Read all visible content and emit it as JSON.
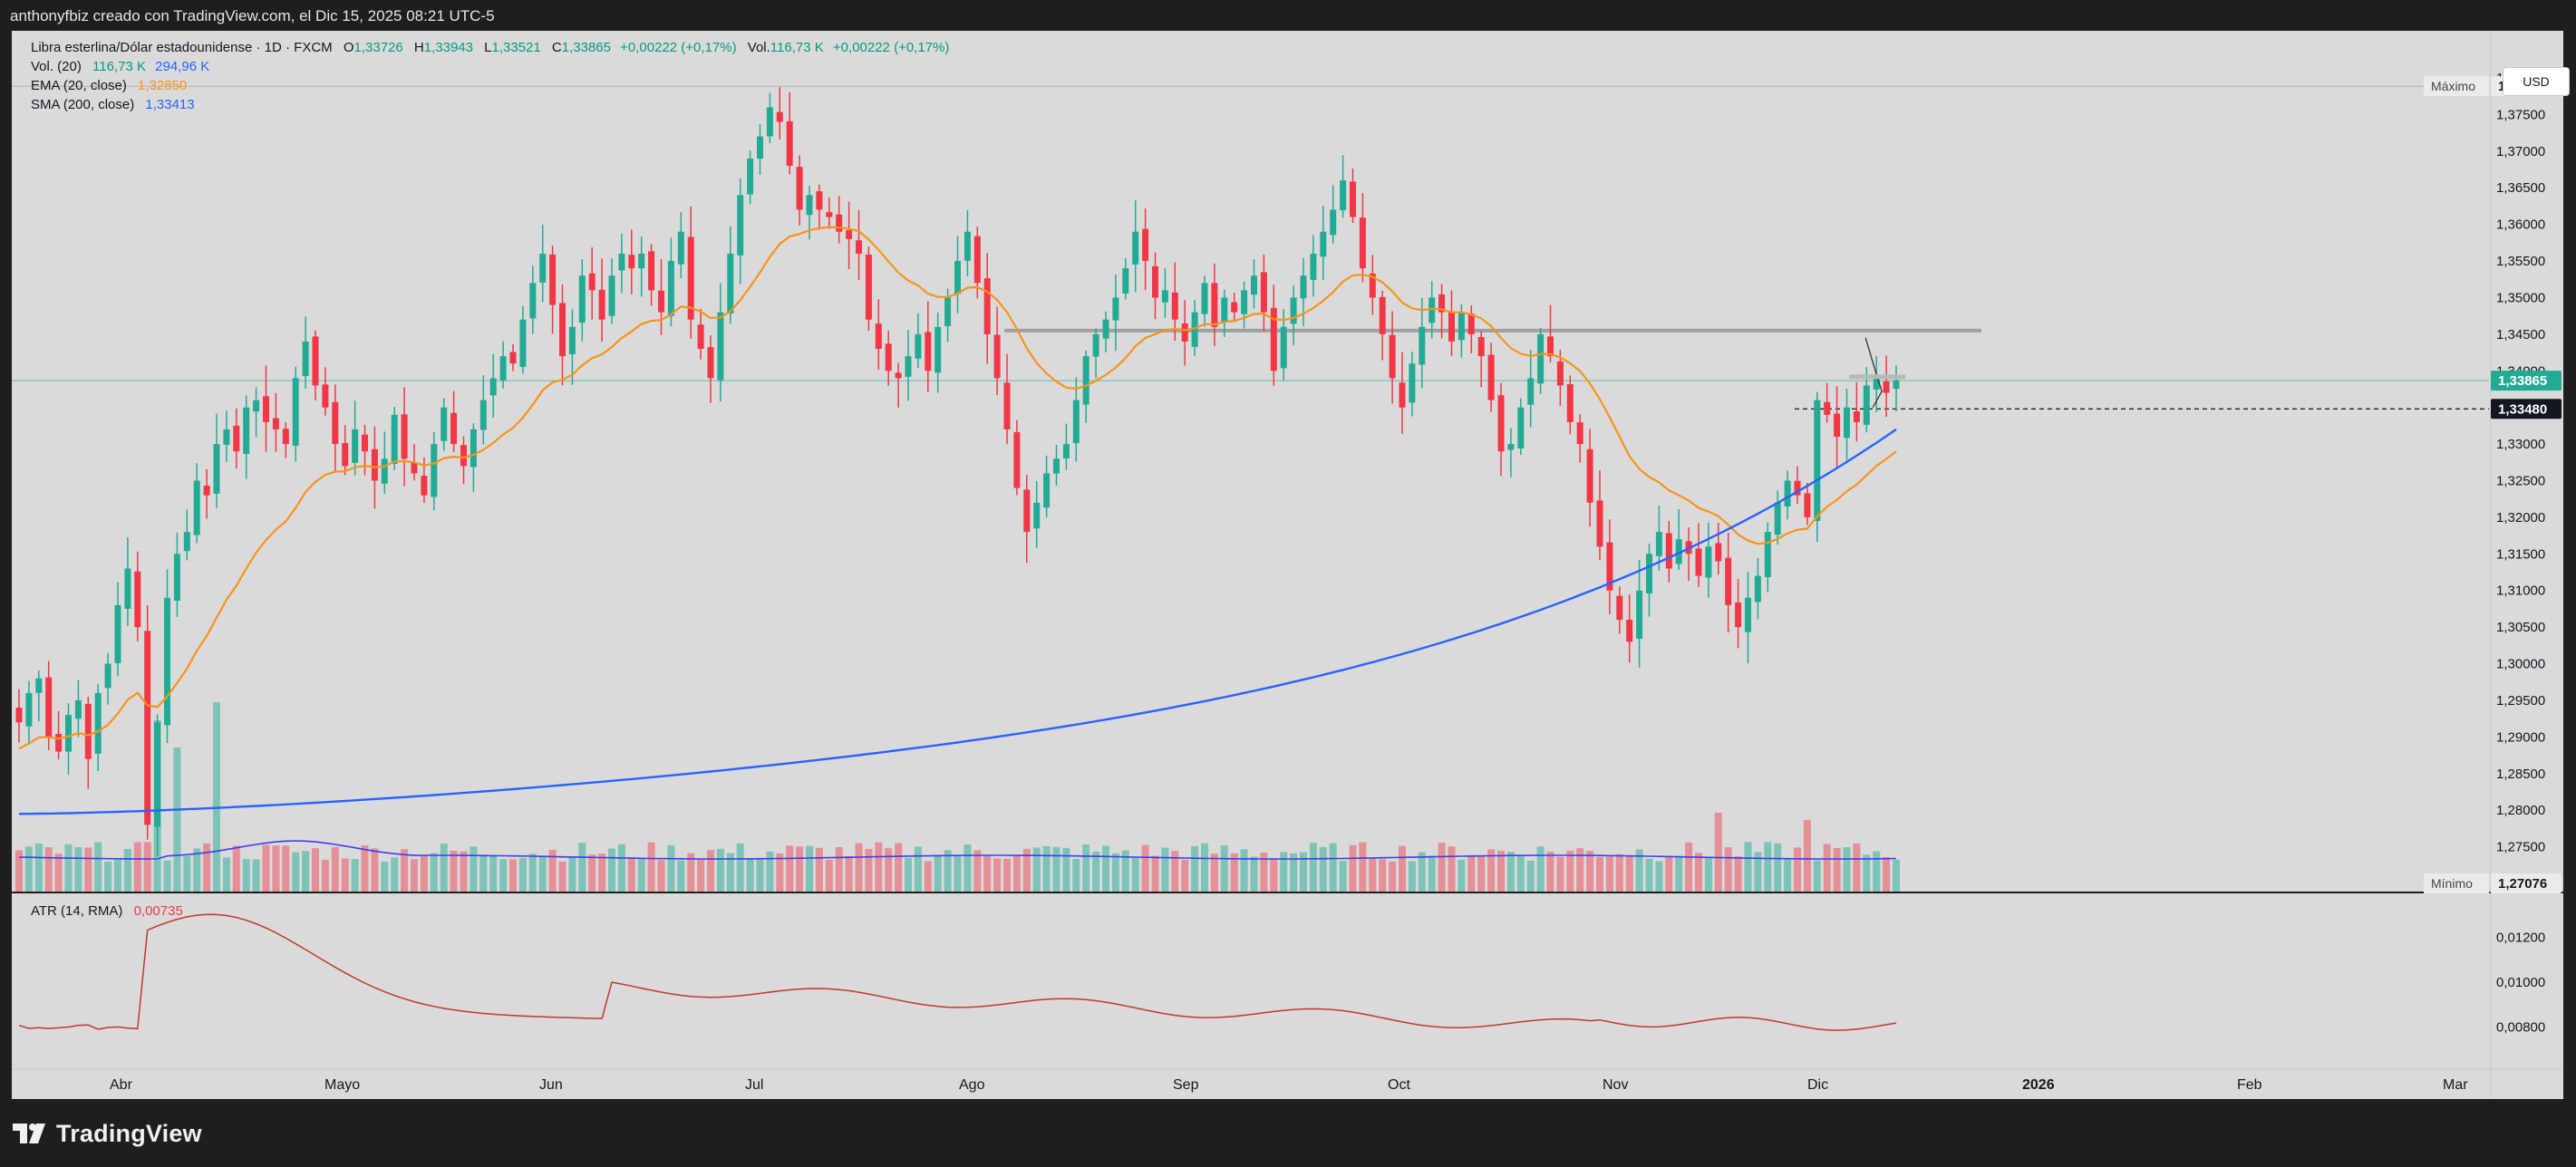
{
  "header": {
    "caption": "anthonyfbiz creado con TradingView.com, el Dic 15, 2025 08:21 UTC-5"
  },
  "legend": {
    "symbol": "Libra esterlina/Dólar estadounidense · 1D · FXCM",
    "o_label": "O",
    "o_value": "1,33726",
    "h_label": "H",
    "h_value": "1,33943",
    "l_label": "L",
    "l_value": "1,33521",
    "c_label": "C",
    "c_value": "1,33865",
    "change": "+0,00222 (+0,17%)",
    "vol_label": "Vol.",
    "vol_value": "116,73 K",
    "vol_change": "+0,00222 (+0,17%)",
    "vol_ind": "Vol. (20)",
    "vol_ind_v1": "116,73 K",
    "vol_ind_v2": "294,96 K",
    "ema": "EMA (20, close)",
    "ema_value": "1,32850",
    "sma": "SMA (200, close)",
    "sma_value": "1,33413",
    "atr": "ATR (14, RMA)",
    "atr_value": "0,00735"
  },
  "currency_button": "USD",
  "badges": {
    "max_label": "Máximo",
    "max_value": "1,37886",
    "min_label": "Mínimo",
    "min_value": "1,27076",
    "last_price": "1,33865",
    "crosshair_price": "1,33480"
  },
  "price_axis": [
    "1,38000",
    "1,37500",
    "1,37000",
    "1,36500",
    "1,36000",
    "1,35500",
    "1,35000",
    "1,34500",
    "1,34000",
    "1,33500",
    "1,33000",
    "1,32500",
    "1,32000",
    "1,31500",
    "1,31000",
    "1,30500",
    "1,30000",
    "1,29500",
    "1,29000",
    "1,28500",
    "1,28000",
    "1,27500",
    "1,27000"
  ],
  "atr_axis": [
    "0,01200",
    "0,01000",
    "0,00800"
  ],
  "time_axis": [
    "Abr",
    "Mayo",
    "Jun",
    "Jul",
    "Ago",
    "Sep",
    "Oct",
    "Nov",
    "Dic",
    "2026",
    "Feb",
    "Mar"
  ],
  "brand": "TradingView",
  "colors": {
    "up": "#22ab94",
    "down": "#f23645",
    "ema": "#f7931a",
    "sma": "#2962ff",
    "atr": "#c0392b",
    "vol_ma": "#3d3df2",
    "background": "#dadada",
    "frame": "#1e1e1e"
  },
  "chart_data": {
    "type": "candlestick",
    "series": [
      {
        "name": "Libra esterlina/Dólar estadounidense · 1D · FXCM"
      },
      {
        "name": "EMA (20, close)"
      },
      {
        "name": "SMA (200, close)"
      },
      {
        "name": "Vol. (20)"
      },
      {
        "name": "ATR (14, RMA)"
      }
    ],
    "x": [
      "Abr",
      "Mayo",
      "Jun",
      "Jul",
      "Ago",
      "Sep",
      "Oct",
      "Nov",
      "Dic",
      "2026",
      "Feb",
      "Mar"
    ],
    "ylim": [
      1.27,
      1.38
    ],
    "atr_ylim": [
      0.007,
      0.013
    ],
    "ohlc_close": [
      1.292,
      1.296,
      1.298,
      1.29,
      1.288,
      1.293,
      1.295,
      1.287,
      1.296,
      1.3,
      1.308,
      1.313,
      1.305,
      1.278,
      1.292,
      1.309,
      1.315,
      1.318,
      1.325,
      1.323,
      1.33,
      1.332,
      1.329,
      1.335,
      1.336,
      1.333,
      1.332,
      1.33,
      1.339,
      1.344,
      1.338,
      1.335,
      1.33,
      1.327,
      1.332,
      1.329,
      1.325,
      1.328,
      1.334,
      1.328,
      1.326,
      1.323,
      1.33,
      1.335,
      1.33,
      1.327,
      1.332,
      1.336,
      1.339,
      1.342,
      1.341,
      1.347,
      1.352,
      1.356,
      1.349,
      1.342,
      1.346,
      1.353,
      1.351,
      1.347,
      1.353,
      1.356,
      1.354,
      1.356,
      1.351,
      1.348,
      1.355,
      1.359,
      1.347,
      1.343,
      1.339,
      1.348,
      1.356,
      1.364,
      1.369,
      1.372,
      1.376,
      1.374,
      1.368,
      1.362,
      1.364,
      1.362,
      1.361,
      1.359,
      1.358,
      1.356,
      1.347,
      1.343,
      1.34,
      1.339,
      1.342,
      1.345,
      1.34,
      1.346,
      1.35,
      1.355,
      1.359,
      1.352,
      1.345,
      1.339,
      1.332,
      1.324,
      1.318,
      1.322,
      1.326,
      1.328,
      1.33,
      1.336,
      1.342,
      1.345,
      1.347,
      1.35,
      1.354,
      1.359,
      1.355,
      1.35,
      1.351,
      1.347,
      1.344,
      1.348,
      1.352,
      1.346,
      1.35,
      1.348,
      1.351,
      1.353,
      1.348,
      1.34,
      1.346,
      1.35,
      1.353,
      1.356,
      1.359,
      1.362,
      1.366,
      1.361,
      1.354,
      1.35,
      1.345,
      1.339,
      1.335,
      1.341,
      1.346,
      1.35,
      1.348,
      1.344,
      1.348,
      1.345,
      1.342,
      1.336,
      1.329,
      1.33,
      1.335,
      1.339,
      1.345,
      1.342,
      1.338,
      1.333,
      1.33,
      1.322,
      1.316,
      1.31,
      1.306,
      1.303,
      1.31,
      1.315,
      1.318,
      1.313,
      1.317,
      1.315,
      1.312,
      1.316,
      1.314,
      1.308,
      1.305,
      1.309,
      1.312,
      1.318,
      1.322,
      1.325,
      1.323,
      1.32,
      1.336,
      1.334,
      1.331,
      1.335,
      1.333,
      1.338,
      1.339,
      1.337,
      1.3387
    ]
  }
}
